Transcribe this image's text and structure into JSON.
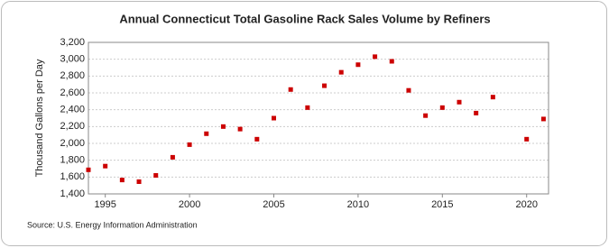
{
  "chart_data": {
    "type": "scatter",
    "title": "Annual Connecticut Total Gasoline Rack Sales Volume by Refiners",
    "y_label": "Thousand Gallons per Day",
    "source": "Source: U.S. Energy Information Administration",
    "x": [
      1994,
      1995,
      1996,
      1997,
      1998,
      1999,
      2000,
      2001,
      2002,
      2003,
      2004,
      2005,
      2006,
      2007,
      2008,
      2009,
      2010,
      2011,
      2012,
      2013,
      2014,
      2015,
      2016,
      2017,
      2018,
      2020,
      2021
    ],
    "values": [
      1686,
      1730,
      1565,
      1545,
      1620,
      1835,
      1985,
      2115,
      2200,
      2170,
      2050,
      2300,
      2640,
      2425,
      2685,
      2845,
      2935,
      3030,
      2975,
      2630,
      2330,
      2425,
      2490,
      2360,
      2550,
      2050,
      2290
    ],
    "color": "#cc0000",
    "xlim": [
      1994,
      2021.3
    ],
    "xticks": [
      1995,
      2000,
      2005,
      2010,
      2015,
      2020
    ],
    "ylim": [
      1400,
      3200
    ],
    "yticks": [
      {
        "value": 1400,
        "label": "1,400"
      },
      {
        "value": 1600,
        "label": "1,600"
      },
      {
        "value": 1800,
        "label": "1,800"
      },
      {
        "value": 2000,
        "label": "2,000"
      },
      {
        "value": 2200,
        "label": "2,200"
      },
      {
        "value": 2400,
        "label": "2,400"
      },
      {
        "value": 2600,
        "label": "2,600"
      },
      {
        "value": 2800,
        "label": "2,800"
      },
      {
        "value": 3000,
        "label": "3,000"
      },
      {
        "value": 3200,
        "label": "3,200"
      }
    ],
    "grid": true
  }
}
